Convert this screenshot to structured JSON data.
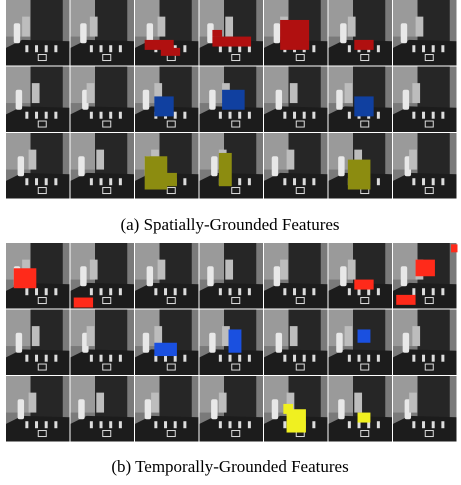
{
  "figure": {
    "captions": [
      "(a) Spatially-Grounded Features",
      "(b) Temporally-Grounded Features"
    ]
  }
}
